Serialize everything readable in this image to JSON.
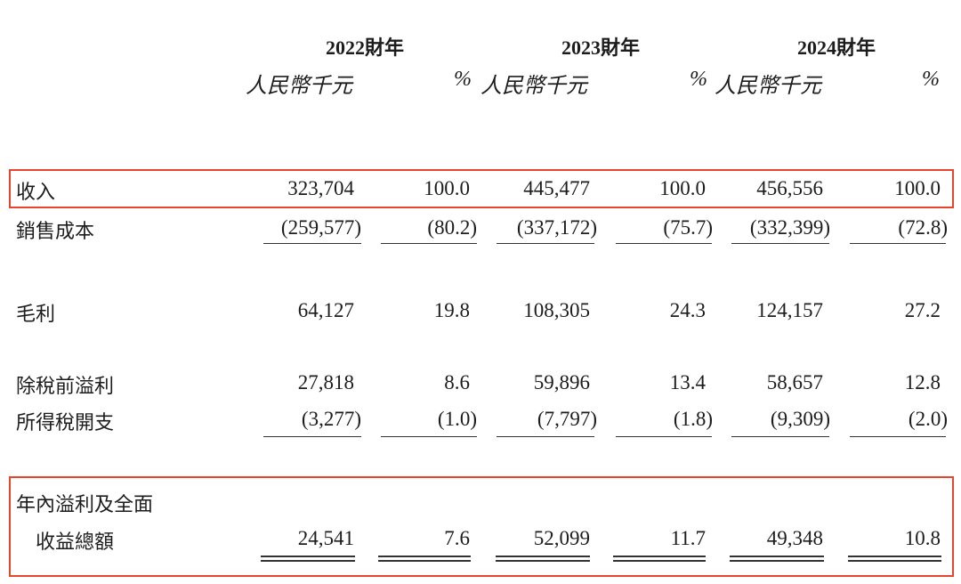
{
  "header": {
    "years": [
      "2022財年",
      "2023財年",
      "2024財年"
    ],
    "unit_rmb": "人民幣千元",
    "unit_pct": "%"
  },
  "rows": [
    {
      "label": "收入",
      "values": [
        "323,704",
        "100.0",
        "445,477",
        "100.0",
        "456,556",
        "100.0"
      ]
    },
    {
      "label": "銷售成本",
      "values": [
        "(259,577)",
        "(80.2)",
        "(337,172)",
        "(75.7)",
        "(332,399)",
        "(72.8)"
      ]
    },
    {
      "label": "毛利",
      "values": [
        "64,127",
        "19.8",
        "108,305",
        "24.3",
        "124,157",
        "27.2"
      ]
    },
    {
      "label": "除稅前溢利",
      "values": [
        "27,818",
        "8.6",
        "59,896",
        "13.4",
        "58,657",
        "12.8"
      ]
    },
    {
      "label": "所得稅開支",
      "values": [
        "(3,277)",
        "(1.0)",
        "(7,797)",
        "(1.8)",
        "(9,309)",
        "(2.0)"
      ]
    },
    {
      "label_line1": "年內溢利及全面",
      "label_line2": "收益總額",
      "values": [
        "24,541",
        "7.6",
        "52,099",
        "11.7",
        "49,348",
        "10.8"
      ]
    }
  ],
  "highlight_color": "#e8462c"
}
